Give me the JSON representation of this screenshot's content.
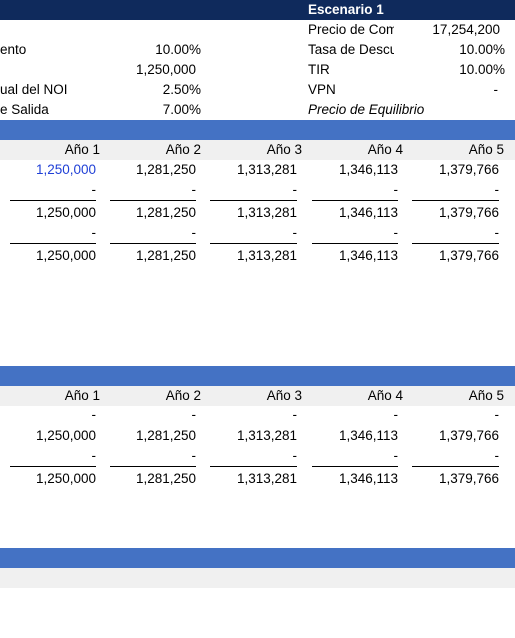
{
  "header": {
    "scenario": "Escenario 1"
  },
  "left_params": [
    {
      "label": "ento",
      "value": "10.00%"
    },
    {
      "label": "",
      "value": "1,250,000"
    },
    {
      "label": "ual del NOI",
      "value": "2.50%"
    },
    {
      "label": "e Salida",
      "value": "7.00%"
    }
  ],
  "right_params": [
    {
      "label": "Precio de Comp",
      "value": "17,254,200"
    },
    {
      "label": "Tasa de Descue",
      "value": "10.00%"
    },
    {
      "label": "TIR",
      "value": "10.00%"
    },
    {
      "label": "VPN",
      "value": "-"
    },
    {
      "label": "Precio de Equilibrio",
      "value": ""
    }
  ],
  "section1": {
    "years": [
      "Año 1",
      "Año 2",
      "Año 3",
      "Año 4",
      "Año 5"
    ],
    "rows": [
      [
        "1,250,000",
        "1,281,250",
        "1,313,281",
        "1,346,113",
        "1,379,766"
      ],
      [
        "-",
        "-",
        "-",
        "-",
        "-"
      ],
      [
        "1,250,000",
        "1,281,250",
        "1,313,281",
        "1,346,113",
        "1,379,766"
      ],
      [
        "-",
        "-",
        "-",
        "-",
        "-"
      ],
      [
        "1,250,000",
        "1,281,250",
        "1,313,281",
        "1,346,113",
        "1,379,766"
      ]
    ]
  },
  "section2": {
    "years": [
      "Año 1",
      "Año 2",
      "Año 3",
      "Año 4",
      "Año 5"
    ],
    "rows": [
      [
        "-",
        "-",
        "-",
        "-",
        "-"
      ],
      [
        "1,250,000",
        "1,281,250",
        "1,313,281",
        "1,346,113",
        "1,379,766"
      ],
      [
        "-",
        "-",
        "-",
        "-",
        "-"
      ],
      [
        "1,250,000",
        "1,281,250",
        "1,313,281",
        "1,346,113",
        "1,379,766"
      ]
    ]
  },
  "colors": {
    "header_navy": "#0f2a5c",
    "section_band": "#4472c4",
    "input_blue": "#1f3fd6",
    "row_gray": "#f0f0f0"
  }
}
